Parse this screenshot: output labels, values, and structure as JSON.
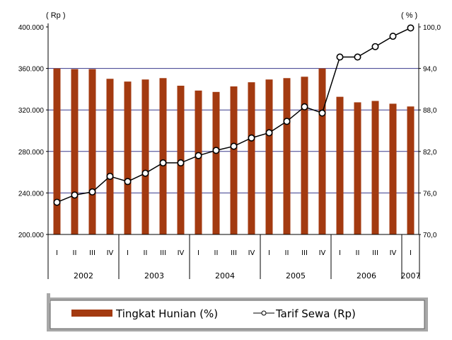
{
  "chart_data": {
    "type": "bar",
    "y_left": {
      "unit_label": "( Rp )",
      "ticks": [
        "400.000",
        "360.000",
        "320.000",
        "280.000",
        "240.000",
        "200.000"
      ],
      "tick_values": [
        400000,
        360000,
        320000,
        280000,
        240000,
        200000
      ],
      "range": [
        200000,
        400000
      ]
    },
    "y_right": {
      "unit_label": "( % )",
      "ticks": [
        "100,0",
        "94,0",
        "88,0",
        "82,0",
        "76,0",
        "70,0"
      ],
      "tick_values": [
        100,
        94,
        88,
        82,
        76,
        70
      ],
      "range": [
        70,
        100
      ]
    },
    "gridlines": [
      360000,
      320000,
      280000,
      240000
    ],
    "categories": [
      "I",
      "II",
      "III",
      "IV",
      "I",
      "II",
      "III",
      "IV",
      "I",
      "II",
      "III",
      "IV",
      "I",
      "II",
      "III",
      "IV",
      "I",
      "II",
      "III",
      "IV",
      "I"
    ],
    "years": [
      {
        "label": "2002",
        "span": 4
      },
      {
        "label": "2003",
        "span": 4
      },
      {
        "label": "2004",
        "span": 4
      },
      {
        "label": "2005",
        "span": 4
      },
      {
        "label": "2006",
        "span": 4
      },
      {
        "label": "2007",
        "span": 1
      }
    ],
    "series": [
      {
        "name": "Tingkat Hunian (%)",
        "type": "bar",
        "axis": "right",
        "color": "#A33A10",
        "values": [
          94.0,
          93.9,
          93.9,
          92.5,
          92.1,
          92.4,
          92.6,
          91.5,
          90.8,
          90.6,
          91.4,
          92.0,
          92.4,
          92.6,
          92.8,
          94.0,
          89.9,
          89.1,
          89.3,
          88.9,
          88.5
        ]
      },
      {
        "name": "Tarif Sewa (Rp)",
        "type": "line",
        "axis": "left",
        "color": "#000000",
        "values": [
          231000,
          238000,
          241000,
          256000,
          251000,
          259000,
          269000,
          269000,
          276000,
          281000,
          285000,
          293000,
          298000,
          309000,
          323000,
          317000,
          371000,
          371000,
          381000,
          391000,
          399000
        ]
      }
    ]
  }
}
